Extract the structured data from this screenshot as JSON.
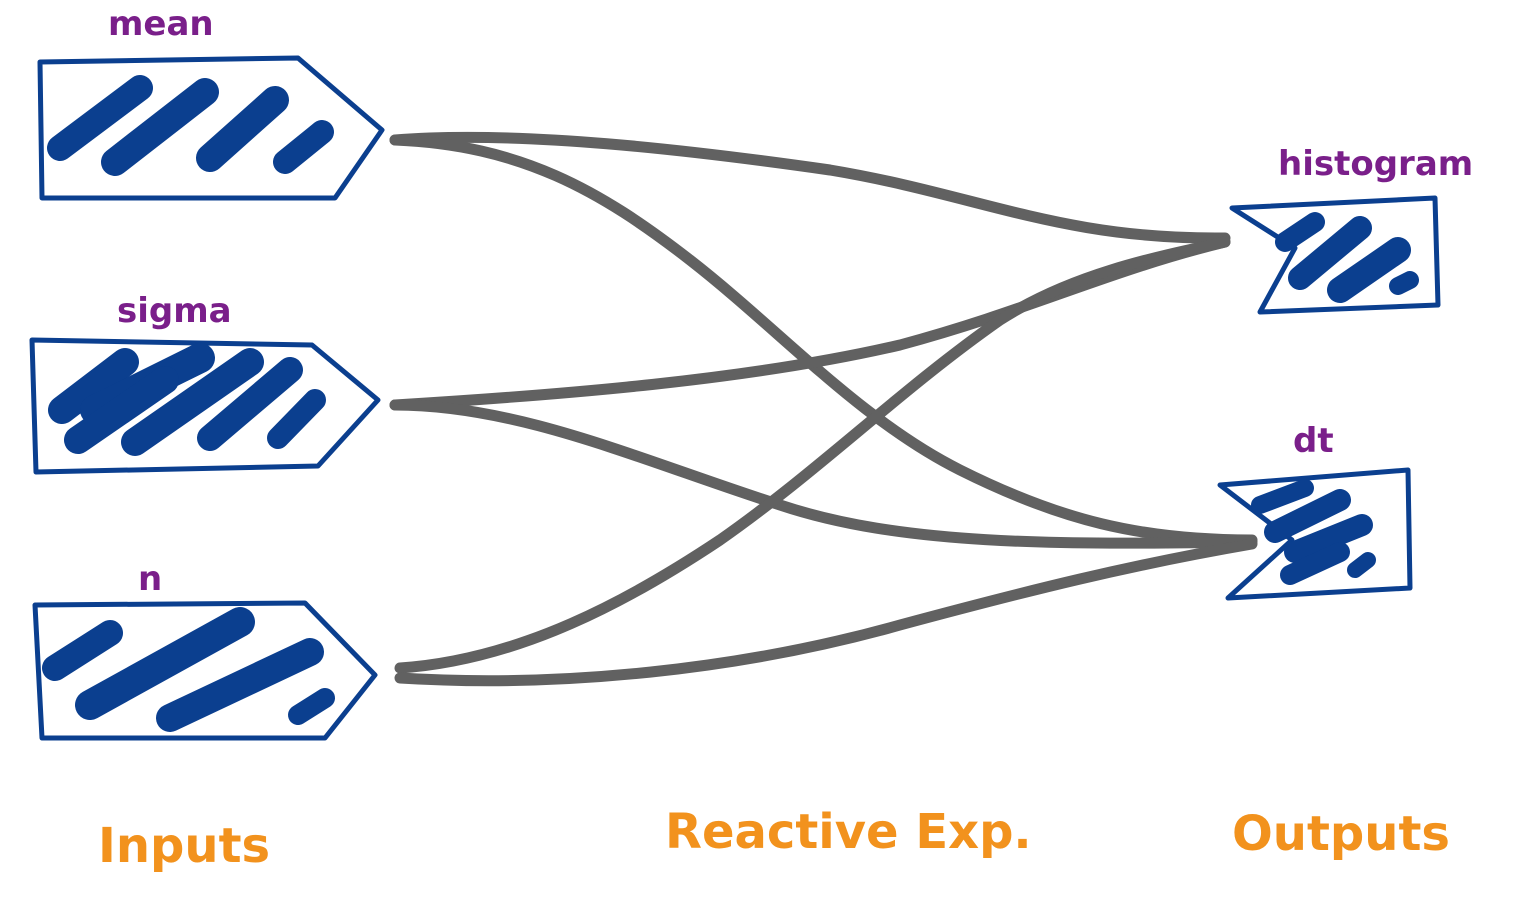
{
  "inputs": [
    {
      "id": "mean",
      "label": "mean"
    },
    {
      "id": "sigma",
      "label": "sigma"
    },
    {
      "id": "n",
      "label": "n"
    }
  ],
  "outputs": [
    {
      "id": "histogram",
      "label": "histogram"
    },
    {
      "id": "dt",
      "label": "dt"
    }
  ],
  "columns": {
    "inputs": "Inputs",
    "reactive": "Reactive Exp.",
    "outputs": "Outputs"
  },
  "edges": [
    {
      "from": "mean",
      "to": "histogram"
    },
    {
      "from": "mean",
      "to": "dt"
    },
    {
      "from": "sigma",
      "to": "histogram"
    },
    {
      "from": "sigma",
      "to": "dt"
    },
    {
      "from": "n",
      "to": "histogram"
    },
    {
      "from": "n",
      "to": "dt"
    }
  ],
  "colors": {
    "box": "#0b3f8f",
    "edge": "#616161",
    "node_label": "#7a1f8a",
    "column_label": "#f2921d"
  }
}
